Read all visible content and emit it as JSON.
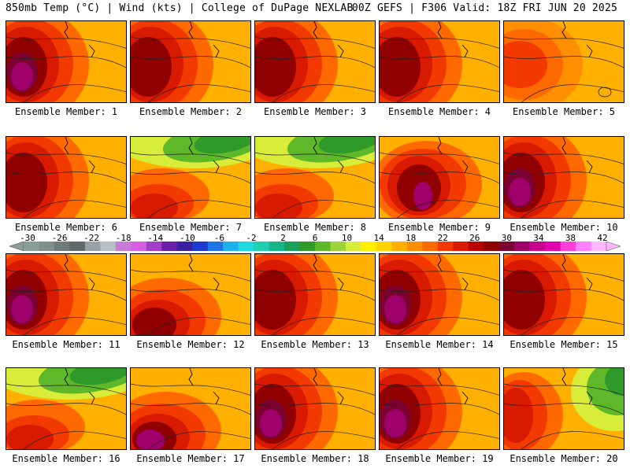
{
  "header": {
    "title_left": "850mb Temp (°C) | Wind (kts) | College of DuPage NEXLAB",
    "title_right": "00Z GEFS | F306 Valid: 18Z FRI JUN 20 2025"
  },
  "panels": [
    {
      "label": "Ensemble Member: 1",
      "field": "hot-west",
      "purple": true
    },
    {
      "label": "Ensemble Member: 2",
      "field": "hot-west",
      "purple": false
    },
    {
      "label": "Ensemble Member: 3",
      "field": "hot-west",
      "purple": false
    },
    {
      "label": "Ensemble Member: 4",
      "field": "hot-west",
      "purple": false
    },
    {
      "label": "Ensemble Member: 5",
      "field": "warm",
      "purple": false
    },
    {
      "label": "Ensemble Member: 6",
      "field": "hot-west",
      "purple": false
    },
    {
      "label": "Ensemble Member: 7",
      "field": "cool-north",
      "purple": false
    },
    {
      "label": "Ensemble Member: 8",
      "field": "cool-north",
      "purple": false
    },
    {
      "label": "Ensemble Member: 9",
      "field": "hot-center",
      "purple": true
    },
    {
      "label": "Ensemble Member: 10",
      "field": "hot-west",
      "purple": true
    },
    {
      "label": "Ensemble Member: 11",
      "field": "hot-west",
      "purple": true
    },
    {
      "label": "Ensemble Member: 12",
      "field": "hot-southwest",
      "purple": false
    },
    {
      "label": "Ensemble Member: 13",
      "field": "hot-west",
      "purple": false
    },
    {
      "label": "Ensemble Member: 14",
      "field": "hot-west",
      "purple": true
    },
    {
      "label": "Ensemble Member: 15",
      "field": "hot-west",
      "purple": false
    },
    {
      "label": "Ensemble Member: 16",
      "field": "cool-north",
      "purple": false
    },
    {
      "label": "Ensemble Member: 17",
      "field": "hot-southwest",
      "purple": true
    },
    {
      "label": "Ensemble Member: 18",
      "field": "hot-west",
      "purple": true
    },
    {
      "label": "Ensemble Member: 19",
      "field": "hot-west",
      "purple": true
    },
    {
      "label": "Ensemble Member: 20",
      "field": "cool-northeast",
      "purple": false
    }
  ],
  "colorbar": {
    "ticks": [
      "-30",
      "-26",
      "-22",
      "-18",
      "-14",
      "-10",
      "-6",
      "-2",
      "2",
      "6",
      "10",
      "14",
      "18",
      "22",
      "26",
      "30",
      "34",
      "38",
      "42"
    ],
    "colors": [
      "#8c9e9a",
      "#7f8f8c",
      "#6e7b7a",
      "#5f6a6a",
      "#9aa0a8",
      "#b8bfc8",
      "#c77ad8",
      "#d45fe0",
      "#a23fc9",
      "#6b1fa8",
      "#3a1fa0",
      "#1f3ad0",
      "#1f75e6",
      "#1fb0ee",
      "#1fd8e0",
      "#1ed0b0",
      "#16b88a",
      "#1aa05a",
      "#2f9a2a",
      "#5fb82a",
      "#9ed43a",
      "#d8ec3a",
      "#fff000",
      "#ffd400",
      "#ffb000",
      "#ff8e00",
      "#ff6a00",
      "#f23a00",
      "#d81a00",
      "#b80000",
      "#900000",
      "#7a0030",
      "#a0006a",
      "#c8008f",
      "#e000b0",
      "#ff40d8",
      "#ff80ff",
      "#ffb8ff"
    ]
  }
}
